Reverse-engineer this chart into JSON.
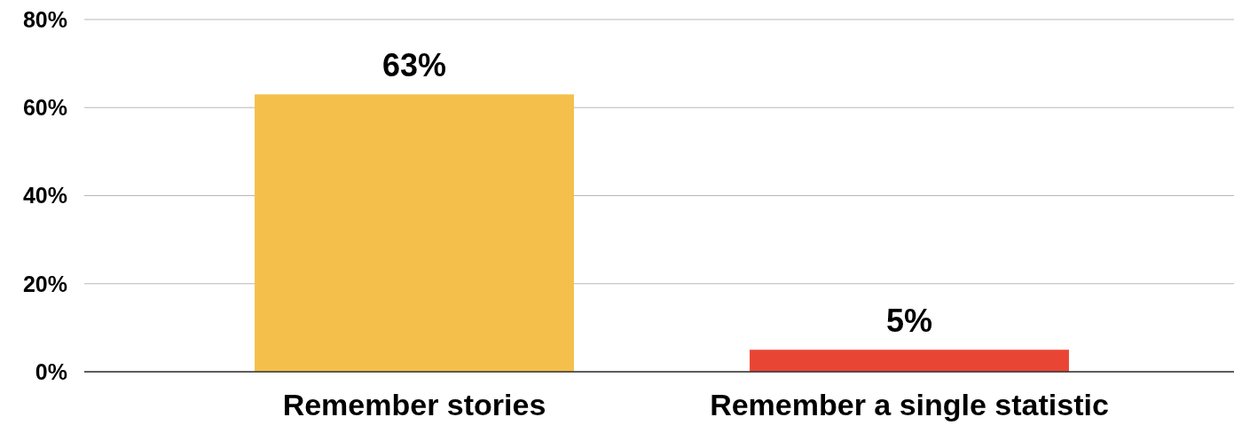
{
  "chart_data": {
    "type": "bar",
    "categories": [
      "Remember stories",
      "Remember a single statistic"
    ],
    "values": [
      63,
      5
    ],
    "colors": [
      "#f5bf4c",
      "#e94535"
    ],
    "value_labels": [
      "63%",
      "5%"
    ],
    "ylim": [
      0,
      80
    ],
    "yticks": [
      {
        "value": 0,
        "label": "0%"
      },
      {
        "value": 20,
        "label": "20%"
      },
      {
        "value": 40,
        "label": "40%"
      },
      {
        "value": 60,
        "label": "60%"
      },
      {
        "value": 80,
        "label": "80%"
      }
    ],
    "grid": "y"
  }
}
